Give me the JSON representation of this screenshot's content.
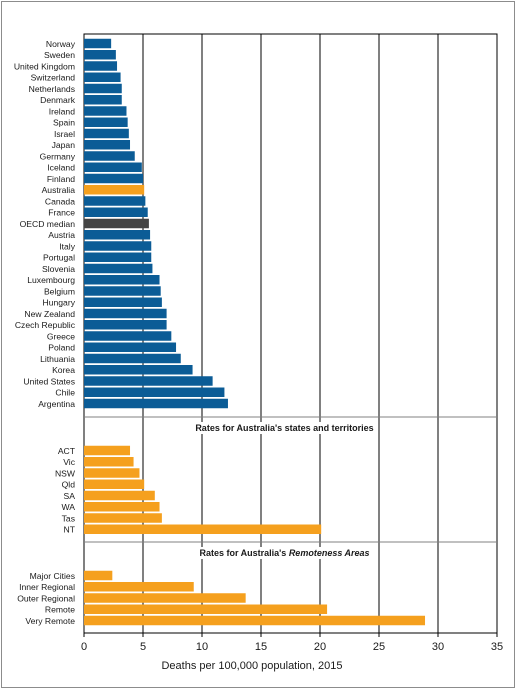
{
  "chart_data": {
    "type": "bar",
    "orientation": "horizontal",
    "xlabel": "Deaths per 100,000 population, 2015",
    "xlim": [
      0,
      35
    ],
    "x_ticks": [
      0,
      5,
      10,
      15,
      20,
      25,
      30,
      35
    ],
    "grid": "vertical",
    "colors": {
      "country": "#0b5c96",
      "highlight": "#f5a01e",
      "median": "#444444"
    },
    "panels": [
      {
        "title": "",
        "bars": [
          {
            "label": "Norway",
            "value": 2.3,
            "kind": "country"
          },
          {
            "label": "Sweden",
            "value": 2.7,
            "kind": "country"
          },
          {
            "label": "United Kingdom",
            "value": 2.8,
            "kind": "country"
          },
          {
            "label": "Switzerland",
            "value": 3.1,
            "kind": "country"
          },
          {
            "label": "Netherlands",
            "value": 3.2,
            "kind": "country"
          },
          {
            "label": "Denmark",
            "value": 3.2,
            "kind": "country"
          },
          {
            "label": "Ireland",
            "value": 3.6,
            "kind": "country"
          },
          {
            "label": "Spain",
            "value": 3.7,
            "kind": "country"
          },
          {
            "label": "Israel",
            "value": 3.8,
            "kind": "country"
          },
          {
            "label": "Japan",
            "value": 3.9,
            "kind": "country"
          },
          {
            "label": "Germany",
            "value": 4.3,
            "kind": "country"
          },
          {
            "label": "Iceland",
            "value": 4.9,
            "kind": "country"
          },
          {
            "label": "Finland",
            "value": 5.0,
            "kind": "country"
          },
          {
            "label": "Australia",
            "value": 5.1,
            "kind": "highlight"
          },
          {
            "label": "Canada",
            "value": 5.2,
            "kind": "country"
          },
          {
            "label": "France",
            "value": 5.4,
            "kind": "country"
          },
          {
            "label": "OECD median",
            "value": 5.5,
            "kind": "median"
          },
          {
            "label": "Austria",
            "value": 5.6,
            "kind": "country"
          },
          {
            "label": "Italy",
            "value": 5.7,
            "kind": "country"
          },
          {
            "label": "Portugal",
            "value": 5.7,
            "kind": "country"
          },
          {
            "label": "Slovenia",
            "value": 5.8,
            "kind": "country"
          },
          {
            "label": "Luxembourg",
            "value": 6.4,
            "kind": "country"
          },
          {
            "label": "Belgium",
            "value": 6.5,
            "kind": "country"
          },
          {
            "label": "Hungary",
            "value": 6.6,
            "kind": "country"
          },
          {
            "label": "New Zealand",
            "value": 7.0,
            "kind": "country"
          },
          {
            "label": "Czech Republic",
            "value": 7.0,
            "kind": "country"
          },
          {
            "label": "Greece",
            "value": 7.4,
            "kind": "country"
          },
          {
            "label": "Poland",
            "value": 7.8,
            "kind": "country"
          },
          {
            "label": "Lithuania",
            "value": 8.2,
            "kind": "country"
          },
          {
            "label": "Korea",
            "value": 9.2,
            "kind": "country"
          },
          {
            "label": "United States",
            "value": 10.9,
            "kind": "country"
          },
          {
            "label": "Chile",
            "value": 11.9,
            "kind": "country"
          },
          {
            "label": "Argentina",
            "value": 12.2,
            "kind": "country"
          }
        ]
      },
      {
        "title": "Rates for Australia's states and territories",
        "bars": [
          {
            "label": "ACT",
            "value": 3.9,
            "kind": "highlight"
          },
          {
            "label": "Vic",
            "value": 4.2,
            "kind": "highlight"
          },
          {
            "label": "NSW",
            "value": 4.7,
            "kind": "highlight"
          },
          {
            "label": "Qld",
            "value": 5.1,
            "kind": "highlight"
          },
          {
            "label": "SA",
            "value": 6.0,
            "kind": "highlight"
          },
          {
            "label": "WA",
            "value": 6.4,
            "kind": "highlight"
          },
          {
            "label": "Tas",
            "value": 6.6,
            "kind": "highlight"
          },
          {
            "label": "NT",
            "value": 20.1,
            "kind": "highlight"
          }
        ]
      },
      {
        "title": "Rates for Australia's",
        "title_em": "Remoteness Areas",
        "bars": [
          {
            "label": "Major Cities",
            "value": 2.4,
            "kind": "highlight"
          },
          {
            "label": "Inner Regional",
            "value": 9.3,
            "kind": "highlight"
          },
          {
            "label": "Outer Regional",
            "value": 13.7,
            "kind": "highlight"
          },
          {
            "label": "Remote",
            "value": 20.6,
            "kind": "highlight"
          },
          {
            "label": "Very Remote",
            "value": 28.9,
            "kind": "highlight"
          }
        ]
      }
    ]
  }
}
